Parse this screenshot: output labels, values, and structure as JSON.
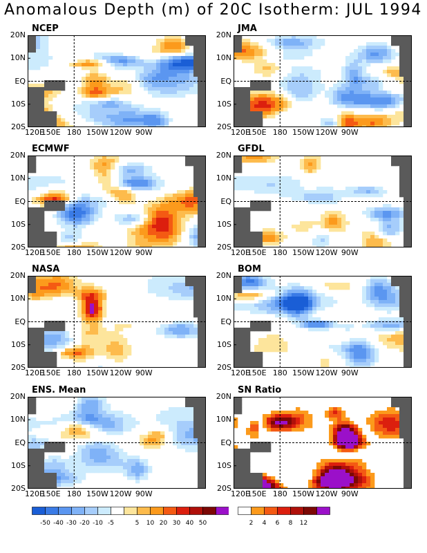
{
  "title": "Anomalous Depth (m) of 20C Isotherm: JUL 1994",
  "lat_labels": [
    "20N",
    "10N",
    "EQ",
    "10S",
    "20S"
  ],
  "lon_labels": [
    "120E",
    "150E",
    "180",
    "150W",
    "120W",
    "90W"
  ],
  "panels": [
    {
      "name": "NCEP",
      "seed": 11,
      "type": "anom"
    },
    {
      "name": "JMA",
      "seed": 23,
      "type": "anom"
    },
    {
      "name": "ECMWF",
      "seed": 37,
      "type": "anom"
    },
    {
      "name": "GFDL",
      "seed": 41,
      "type": "anom"
    },
    {
      "name": "NASA",
      "seed": 53,
      "type": "anom"
    },
    {
      "name": "BOM",
      "seed": 67,
      "type": "anom"
    },
    {
      "name": "ENS. Mean",
      "seed": 79,
      "type": "anom"
    },
    {
      "name": "SN Ratio",
      "seed": 97,
      "type": "snr"
    }
  ],
  "colorbar_anom": {
    "colors": [
      "#1a5ed6",
      "#3a7be6",
      "#5b96f0",
      "#7fb2f7",
      "#a6cdfb",
      "#ccebfd",
      "#ffffff",
      "#fde59c",
      "#fdbb4c",
      "#fc9a1c",
      "#f45a13",
      "#dc1f0e",
      "#b0100a",
      "#7c0805",
      "#9b10c9"
    ],
    "labels": [
      "-50",
      "-40",
      "-30",
      "-20",
      "-10",
      "-5",
      "5",
      "10",
      "20",
      "30",
      "40",
      "50"
    ]
  },
  "colorbar_snr": {
    "colors": [
      "#ffffff",
      "#fc9a1c",
      "#f45a13",
      "#dc1f0e",
      "#b0100a",
      "#7c0805",
      "#9b10c9"
    ],
    "labels": [
      "2",
      "4",
      "6",
      "8",
      "12"
    ]
  },
  "land_color": "#5a5a5a"
}
